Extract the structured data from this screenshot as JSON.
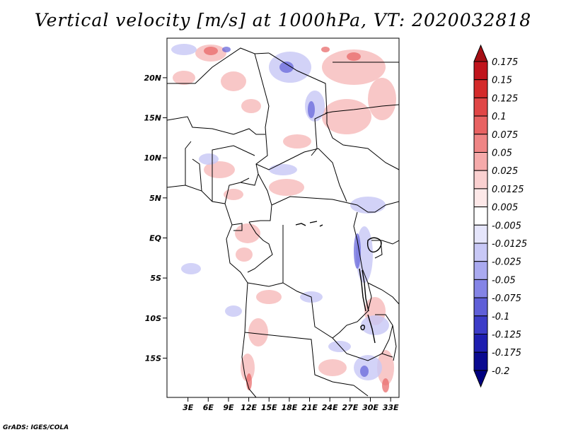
{
  "title": "Vertical velocity [m/s] at 1000hPa, VT: 2020032818",
  "credit": "GrADS: IGES/COLA",
  "map": {
    "lat_labels": [
      {
        "lat": 20,
        "text": "20N"
      },
      {
        "lat": 15,
        "text": "15N"
      },
      {
        "lat": 10,
        "text": "10N"
      },
      {
        "lat": 5,
        "text": "5N"
      },
      {
        "lat": 0,
        "text": "EQ"
      },
      {
        "lat": -5,
        "text": "5S"
      },
      {
        "lat": -10,
        "text": "10S"
      },
      {
        "lat": -15,
        "text": "15S"
      }
    ],
    "lon_labels": [
      {
        "lon": 3,
        "text": "3E"
      },
      {
        "lon": 6,
        "text": "6E"
      },
      {
        "lon": 9,
        "text": "9E"
      },
      {
        "lon": 12,
        "text": "12E"
      },
      {
        "lon": 15,
        "text": "15E"
      },
      {
        "lon": 18,
        "text": "18E"
      },
      {
        "lon": 21,
        "text": "21E"
      },
      {
        "lon": 24,
        "text": "24E"
      },
      {
        "lon": 27,
        "text": "27E"
      },
      {
        "lon": 30,
        "text": "30E"
      },
      {
        "lon": 33,
        "text": "33E"
      }
    ]
  },
  "colorbar": {
    "labels": [
      "0.175",
      "0.15",
      "0.125",
      "0.1",
      "0.075",
      "0.05",
      "0.025",
      "0.0125",
      "0.005",
      "-0.005",
      "-0.0125",
      "-0.025",
      "-0.05",
      "-0.075",
      "-0.1",
      "-0.125",
      "-0.175",
      "-0.2"
    ],
    "colors": [
      "#a50f15",
      "#c0141c",
      "#d42a2a",
      "#e04646",
      "#e86262",
      "#ef8585",
      "#f5aaaa",
      "#fad0d0",
      "#fde8e8",
      "#ffffff",
      "#e5e5fb",
      "#c8c8f6",
      "#aaaaf0",
      "#8484e6",
      "#5f5fd8",
      "#3c3cc8",
      "#1e1eb0",
      "#0a0a90",
      "#000080"
    ]
  }
}
